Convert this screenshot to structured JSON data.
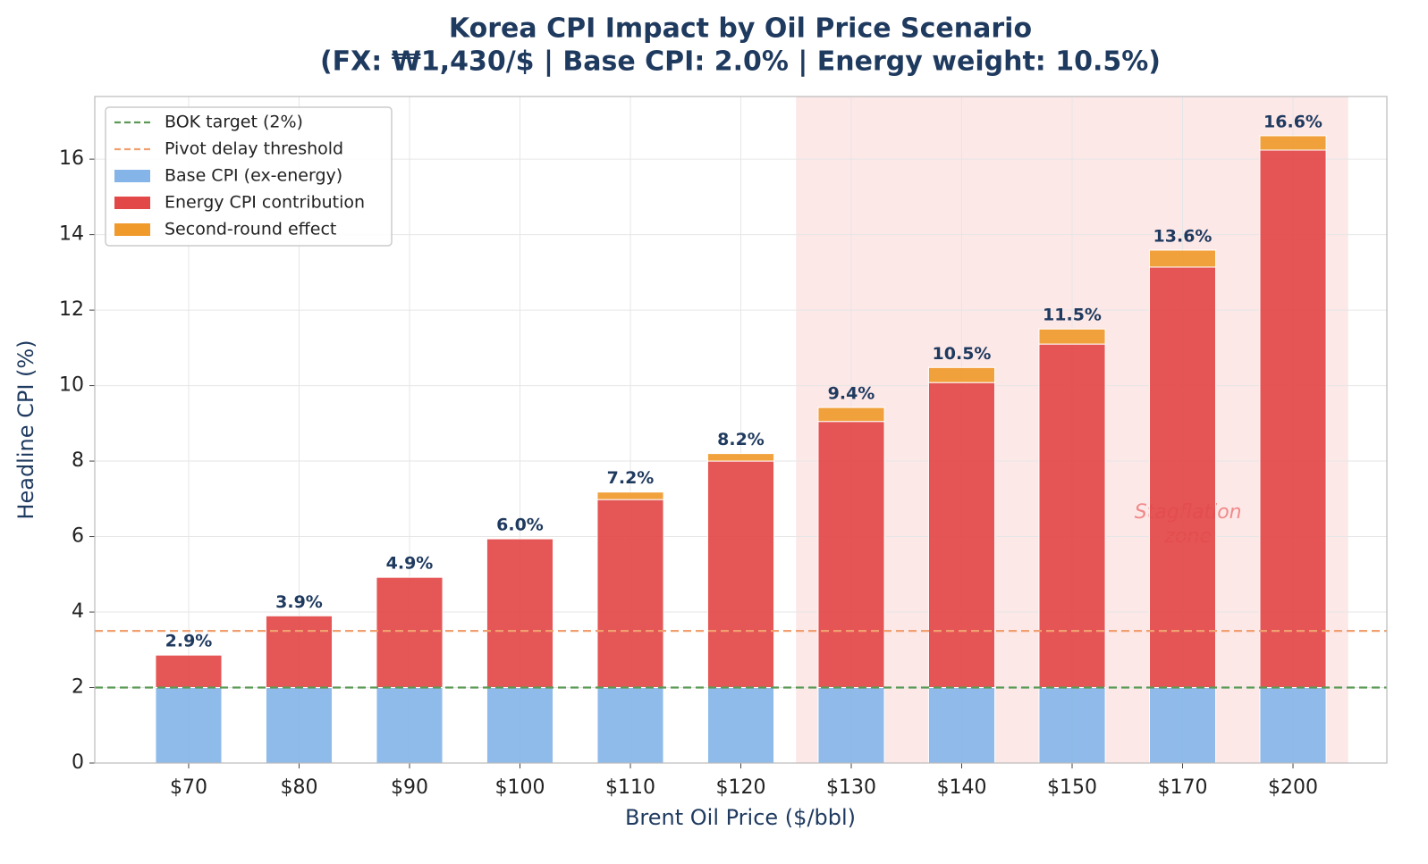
{
  "chart_data": {
    "type": "stacked_bar",
    "title": "Korea CPI Impact by Oil Price Scenario",
    "subtitle": "(FX: ₩1,430/$ | Base CPI: 2.0% | Energy weight: 10.5%)",
    "x_label": "Brent Oil Price ($/bbl)",
    "y_label": "Headline CPI (%)",
    "categories": [
      "$70",
      "$80",
      "$90",
      "$100",
      "$110",
      "$120",
      "$130",
      "$140",
      "$150",
      "$170",
      "$200"
    ],
    "series": [
      {
        "name": "Base CPI (ex-energy)",
        "color": "#85b5e8",
        "values": [
          2.0,
          2.0,
          2.0,
          2.0,
          2.0,
          2.0,
          2.0,
          2.0,
          2.0,
          2.0,
          2.0
        ]
      },
      {
        "name": "Energy CPI contribution",
        "color": "#e34848",
        "values": [
          0.86,
          1.9,
          2.92,
          3.94,
          4.98,
          6.0,
          7.05,
          8.08,
          9.1,
          11.14,
          14.24
        ]
      },
      {
        "name": "Second-round effect",
        "color": "#f09a2c",
        "values": [
          0.0,
          0.0,
          0.0,
          0.0,
          0.2,
          0.2,
          0.37,
          0.4,
          0.4,
          0.45,
          0.38
        ]
      }
    ],
    "totals": [
      2.9,
      3.9,
      4.9,
      6.0,
      7.2,
      8.2,
      9.4,
      10.5,
      11.5,
      13.6,
      16.6
    ],
    "total_labels": [
      "2.9%",
      "3.9%",
      "4.9%",
      "6.0%",
      "7.2%",
      "8.2%",
      "9.4%",
      "10.5%",
      "11.5%",
      "13.6%",
      "16.6%"
    ],
    "reference_lines": [
      {
        "name": "BOK target (2%)",
        "value": 2,
        "color": "#5a9a55"
      },
      {
        "name": "Pivot delay threshold",
        "value": 3.5,
        "color": "#f0a070"
      }
    ],
    "zone": {
      "from_category": 6,
      "to_category": 10,
      "color": "#fde8e8",
      "annotation": [
        "Stagflation",
        "zone"
      ]
    },
    "ylim": [
      0,
      17.66
    ],
    "yticks": [
      0,
      2,
      4,
      6,
      8,
      10,
      12,
      14,
      16
    ],
    "grid": true,
    "legend": "upper left"
  }
}
